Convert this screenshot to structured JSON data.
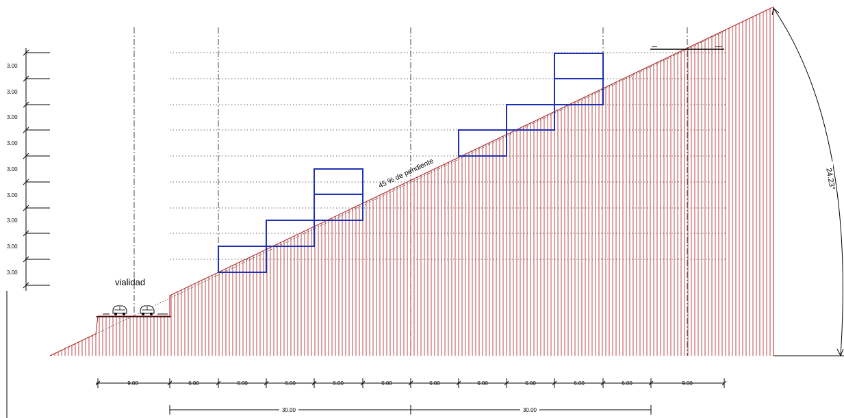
{
  "drawing": {
    "street_label": "vialidad",
    "slope_label": "45 % de pendiente",
    "angle_label": "24.23°"
  },
  "level_heights": [
    "3.00",
    "3.00",
    "3.00",
    "3.00",
    "3.00",
    "3.00",
    "3.00",
    "3.00",
    "3.00"
  ],
  "horizontal_dimensions": [
    "9.00",
    "6.00",
    "6.00",
    "6.00",
    "6.00",
    "6.00",
    "6.00",
    "6.00",
    "6.00",
    "6.00",
    "6.00",
    "9.00"
  ],
  "total_dimensions": [
    "30.00",
    "30.00"
  ],
  "colors": {
    "terrain_hatch": "#b01818",
    "building_outline": "#1f2fb4",
    "dimension_lines": "#000000",
    "guide_lines": "#555555"
  }
}
